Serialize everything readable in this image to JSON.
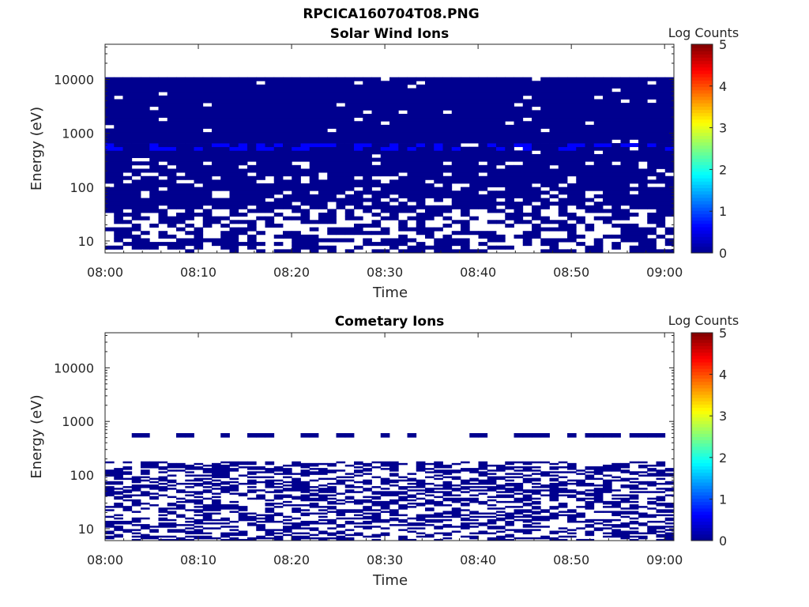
{
  "figure": {
    "title": "RPCICA160704T08.PNG"
  },
  "colormap": [
    "#00008f",
    "#0000ff",
    "#007fff",
    "#00ffff",
    "#7fff7f",
    "#ffff00",
    "#ff7f00",
    "#ff0000",
    "#7f0000"
  ],
  "chart_data": [
    {
      "type": "heatmap",
      "title": "Solar Wind Ions",
      "xlabel": "Time",
      "ylabel": "Energy (eV)",
      "x_range": [
        "08:00",
        "09:01"
      ],
      "x_ticks": [
        "08:00",
        "08:10",
        "08:20",
        "08:30",
        "08:40",
        "08:50",
        "09:00"
      ],
      "y_scale": "log",
      "y_range": [
        6,
        45000
      ],
      "y_ticks": [
        10,
        100,
        1000,
        10000
      ],
      "y_tick_labels": [
        "10",
        "100",
        "1000",
        "10000"
      ],
      "colorbar": {
        "label": "Log Counts",
        "range": [
          0,
          5
        ],
        "ticks": [
          "0",
          "1",
          "2",
          "3",
          "4",
          "5"
        ]
      },
      "data_energy_range_eV": [
        6,
        11000
      ],
      "coverage_by_energy": [
        {
          "energy_range_eV": [
            6,
            40
          ],
          "fill_fraction": 0.55
        },
        {
          "energy_range_eV": [
            40,
            300
          ],
          "fill_fraction": 0.85
        },
        {
          "energy_range_eV": [
            300,
            11000
          ],
          "fill_fraction": 0.97
        }
      ],
      "highlight_band": {
        "energy_eV": 550,
        "log_counts": 0.6
      },
      "typical_log_counts": 0.1,
      "grid": false
    },
    {
      "type": "heatmap",
      "title": "Cometary Ions",
      "xlabel": "Time",
      "ylabel": "Energy (eV)",
      "x_range": [
        "08:00",
        "09:01"
      ],
      "x_ticks": [
        "08:00",
        "08:10",
        "08:20",
        "08:30",
        "08:40",
        "08:50",
        "09:00"
      ],
      "y_scale": "log",
      "y_range": [
        6,
        45000
      ],
      "y_ticks": [
        10,
        100,
        1000,
        10000
      ],
      "y_tick_labels": [
        "10",
        "100",
        "1000",
        "10000"
      ],
      "colorbar": {
        "label": "Log Counts",
        "range": [
          0,
          5
        ],
        "ticks": [
          "0",
          "1",
          "2",
          "3",
          "4",
          "5"
        ]
      },
      "data_energy_range_eV": [
        6,
        180
      ],
      "coverage_by_energy": [
        {
          "energy_range_eV": [
            6,
            40
          ],
          "fill_fraction": 0.45
        },
        {
          "energy_range_eV": [
            40,
            180
          ],
          "fill_fraction": 0.5
        }
      ],
      "sparse_band": {
        "energy_eV": 550,
        "fill_fraction": 0.4
      },
      "typical_log_counts": 0.1,
      "grid": false
    }
  ]
}
